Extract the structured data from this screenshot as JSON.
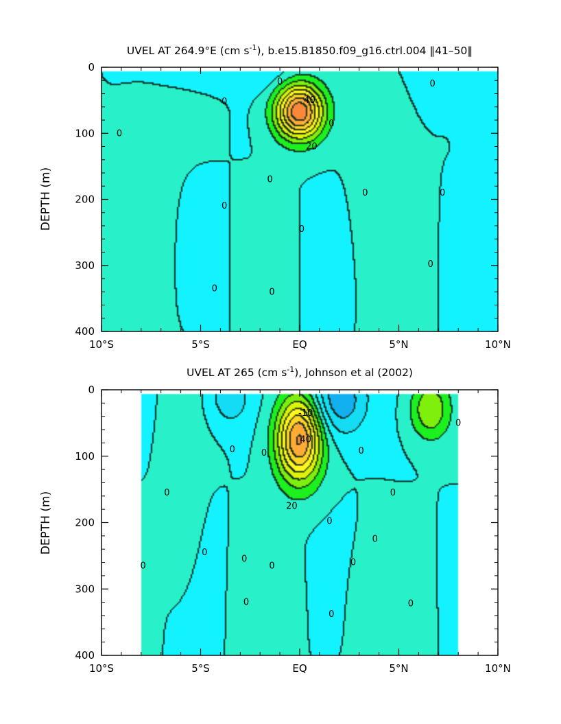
{
  "chart_data": [
    {
      "type": "contour",
      "title_main": "UVEL AT 264.9°E (cm s",
      "title_sup": "-1",
      "title_rest": "), b.e15.B1850.f09_g16.ctrl.004 ‖41–50‖",
      "ylabel": "DEPTH (m)",
      "xlim": [
        -10,
        10
      ],
      "ylim": [
        400,
        0
      ],
      "x_ticks": [
        -10,
        -5,
        0,
        5,
        10
      ],
      "x_tick_labels": [
        "10°S",
        "5°S",
        "EQ",
        "5°N",
        "10°N"
      ],
      "y_ticks": [
        0,
        100,
        200,
        300,
        400
      ],
      "y_tick_labels": [
        "0",
        "100",
        "200",
        "300",
        "400"
      ],
      "data_xrange": [
        -10,
        10
      ],
      "contour_levels": [
        -30,
        -20,
        -10,
        0,
        10,
        20,
        30,
        40,
        50,
        60,
        70,
        80
      ],
      "fill_colors": [
        "#0c8ce8",
        "#13b0f0",
        "#14dcf4",
        "#13f2ff",
        "#28f0c8",
        "#1cf01e",
        "#7ff00c",
        "#dcf40a",
        "#fff61e",
        "#ffd426",
        "#ffab35",
        "#fa8838",
        "#f05a2c"
      ],
      "features": [
        {
          "kind": "jet",
          "x": 0,
          "depth": 68,
          "max": 78,
          "sx": 1.2,
          "sz": 42
        },
        {
          "kind": "eastward",
          "x": -8.4,
          "depth": 240,
          "max": 4,
          "sx": 1.8,
          "sz": 230
        },
        {
          "kind": "eastward",
          "x": 4.3,
          "depth": 170,
          "max": 5,
          "sx": 1.4,
          "sz": 170
        },
        {
          "kind": "westward",
          "x": -3,
          "depth": 10,
          "max": -9,
          "sx": 3.0,
          "sz": 25
        },
        {
          "kind": "westward",
          "x": 9.5,
          "depth": 40,
          "max": -6,
          "sx": 1.5,
          "sz": 60
        }
      ],
      "contour_labels": [
        {
          "x": -9.1,
          "depth": 100,
          "text": "0"
        },
        {
          "x": -3.8,
          "depth": 52,
          "text": "0"
        },
        {
          "x": -4.3,
          "depth": 335,
          "text": "0"
        },
        {
          "x": -3.8,
          "depth": 210,
          "text": "0"
        },
        {
          "x": -1.5,
          "depth": 170,
          "text": "0"
        },
        {
          "x": -1.4,
          "depth": 340,
          "text": "0"
        },
        {
          "x": 0.1,
          "depth": 245,
          "text": "0"
        },
        {
          "x": -1.0,
          "depth": 22,
          "text": "0"
        },
        {
          "x": 1.6,
          "depth": 85,
          "text": "0"
        },
        {
          "x": 3.3,
          "depth": 190,
          "text": "0"
        },
        {
          "x": 6.7,
          "depth": 25,
          "text": "0"
        },
        {
          "x": 7.2,
          "depth": 190,
          "text": "0"
        },
        {
          "x": 6.6,
          "depth": 298,
          "text": "0"
        },
        {
          "x": 0.6,
          "depth": 120,
          "text": "20"
        },
        {
          "x": 0.5,
          "depth": 50,
          "text": "40"
        }
      ]
    },
    {
      "type": "contour",
      "title_main": "UVEL AT 265 (cm s",
      "title_sup": "-1",
      "title_rest": "), Johnson et al (2002)",
      "ylabel": "DEPTH (m)",
      "xlim": [
        -10,
        10
      ],
      "ylim": [
        400,
        0
      ],
      "x_ticks": [
        -10,
        -5,
        0,
        5,
        10
      ],
      "x_tick_labels": [
        "10°S",
        "5°S",
        "EQ",
        "5°N",
        "10°N"
      ],
      "y_ticks": [
        0,
        100,
        200,
        300,
        400
      ],
      "y_tick_labels": [
        "0",
        "100",
        "200",
        "300",
        "400"
      ],
      "data_xrange": [
        -8,
        8
      ],
      "contour_levels": [
        -30,
        -20,
        -10,
        0,
        10,
        20,
        30,
        40,
        50,
        60,
        70,
        80
      ],
      "fill_colors": [
        "#0c8ce8",
        "#13b0f0",
        "#14dcf4",
        "#13f2ff",
        "#28f0c8",
        "#1cf01e",
        "#7ff00c",
        "#dcf40a",
        "#fff61e",
        "#ffd426",
        "#ffab35",
        "#fa8838",
        "#f05a2c"
      ],
      "features": [
        {
          "kind": "jet",
          "x": 0,
          "depth": 75,
          "max": 72,
          "sx": 1.15,
          "sz": 65
        },
        {
          "kind": "eastward",
          "x": -6.0,
          "depth": 160,
          "max": 6,
          "sx": 0.9,
          "sz": 120
        },
        {
          "kind": "eastward",
          "x": 6.6,
          "depth": 30,
          "max": 30,
          "sx": 1.0,
          "sz": 45
        },
        {
          "kind": "eastward",
          "x": -1.5,
          "depth": 330,
          "max": 4,
          "sx": 1.3,
          "sz": 100
        },
        {
          "kind": "eastward",
          "x": 3.8,
          "depth": 330,
          "max": 4,
          "sx": 1.3,
          "sz": 100
        },
        {
          "kind": "westward",
          "x": -3.5,
          "depth": 10,
          "max": -20,
          "sx": 0.9,
          "sz": 40
        },
        {
          "kind": "westward",
          "x": 2.0,
          "depth": 15,
          "max": -30,
          "sx": 1.4,
          "sz": 55
        }
      ],
      "contour_labels": [
        {
          "x": -7.9,
          "depth": 265,
          "text": "0"
        },
        {
          "x": -6.7,
          "depth": 155,
          "text": "0"
        },
        {
          "x": -4.8,
          "depth": 245,
          "text": "0"
        },
        {
          "x": -3.4,
          "depth": 90,
          "text": "0"
        },
        {
          "x": -2.8,
          "depth": 255,
          "text": "0"
        },
        {
          "x": -2.7,
          "depth": 320,
          "text": "0"
        },
        {
          "x": -1.8,
          "depth": 95,
          "text": "0"
        },
        {
          "x": -1.4,
          "depth": 265,
          "text": "0"
        },
        {
          "x": 1.5,
          "depth": 198,
          "text": "0"
        },
        {
          "x": 1.6,
          "depth": 338,
          "text": "0"
        },
        {
          "x": 2.7,
          "depth": 260,
          "text": "0"
        },
        {
          "x": 3.1,
          "depth": 92,
          "text": "0"
        },
        {
          "x": 3.8,
          "depth": 225,
          "text": "0"
        },
        {
          "x": 4.7,
          "depth": 155,
          "text": "0"
        },
        {
          "x": 5.6,
          "depth": 322,
          "text": "0"
        },
        {
          "x": 8.0,
          "depth": 50,
          "text": "0"
        },
        {
          "x": -0.4,
          "depth": 175,
          "text": "20"
        },
        {
          "x": 0.3,
          "depth": 75,
          "text": "40"
        },
        {
          "x": 0.3,
          "depth": 35,
          "text": "-10"
        }
      ]
    }
  ]
}
